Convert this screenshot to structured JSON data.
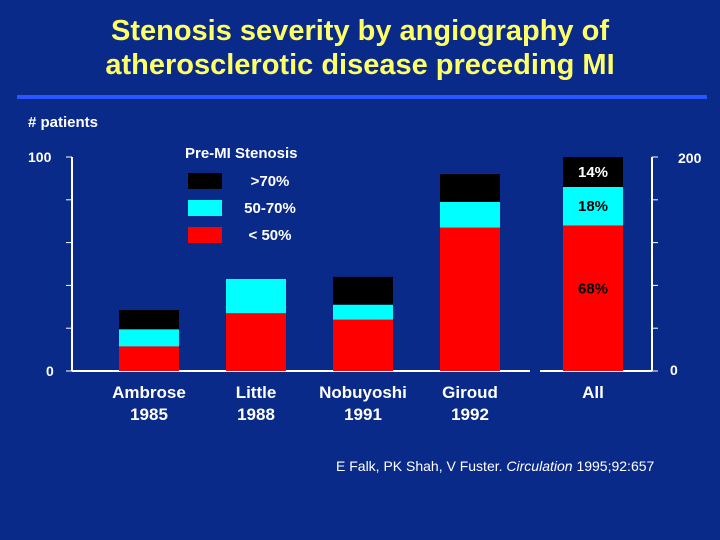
{
  "title_line1": "Stenosis severity by angiography of",
  "title_line2": "atherosclerotic disease preceding MI",
  "colors": {
    "background": "#0a2a8a",
    "title": "#ffff66",
    "rule": "#2a55ff",
    "gt70": "#000000",
    "s50_70": "#00ffff",
    "lt50": "#ff0000"
  },
  "citation": {
    "authors": "E Falk, PK Shah, V Fuster.",
    "journal": "Circulation",
    "ref": "1995;92:657"
  },
  "chart_data": [
    {
      "type": "bar",
      "stacked": true,
      "ylabel": "# patients",
      "ylim": [
        0,
        100
      ],
      "y_ticks": [
        "0",
        "100"
      ],
      "legend_title": "Pre-MI Stenosis",
      "categories": [
        "Ambrose\n1985",
        "Little\n1988",
        "Nobuyoshi\n1991",
        "Giroud\n1992"
      ],
      "series": [
        {
          "name": "< 50%",
          "color": "#ff0000",
          "values": [
            11.5,
            27,
            24,
            67
          ]
        },
        {
          "name": "50-70%",
          "color": "#00ffff",
          "values": [
            8,
            16,
            7,
            12
          ]
        },
        {
          "name": ">70%",
          "color": "#000000",
          "values": [
            9,
            0,
            13,
            13
          ]
        }
      ]
    },
    {
      "type": "bar",
      "stacked": true,
      "ylim": [
        0,
        200
      ],
      "y_ticks": [
        "0",
        "200"
      ],
      "categories": [
        "All"
      ],
      "series": [
        {
          "name": "< 50%",
          "color": "#ff0000",
          "values": [
            68
          ],
          "label": "68%"
        },
        {
          "name": "50-70%",
          "color": "#00ffff",
          "values": [
            18
          ],
          "label": "18%"
        },
        {
          "name": ">70%",
          "color": "#000000",
          "values": [
            14
          ],
          "label": "14%"
        }
      ]
    }
  ]
}
